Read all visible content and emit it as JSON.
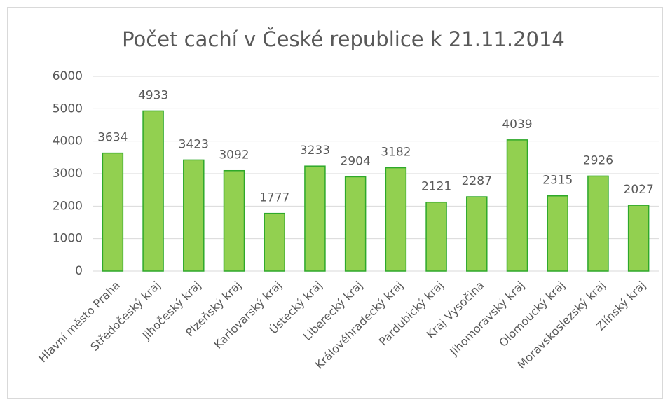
{
  "chart_data": {
    "type": "bar",
    "title": "Počet cachí v České republice k 21.11.2014",
    "categories": [
      "Hlavní město Praha",
      "Středočeský kraj",
      "Jihočeský kraj",
      "Plzeňský kraj",
      "Karlovarský kraj",
      "Ústecký kraj",
      "Liberecký kraj",
      "Královéhradecký kraj",
      "Pardubický kraj",
      "Kraj Vysočina",
      "Jihomoravský kraj",
      "Olomoucký kraj",
      "Moravskoslezský kraj",
      "Zlínský kraj"
    ],
    "values": [
      3634,
      4933,
      3423,
      3092,
      1777,
      3233,
      2904,
      3182,
      2121,
      2287,
      4039,
      2315,
      2926,
      2027
    ],
    "color": "#92d050",
    "edge_color": "#2ea82a",
    "ylim": [
      0,
      6000
    ],
    "yticks": [
      0,
      1000,
      2000,
      3000,
      4000,
      5000,
      6000
    ],
    "grid": true
  }
}
